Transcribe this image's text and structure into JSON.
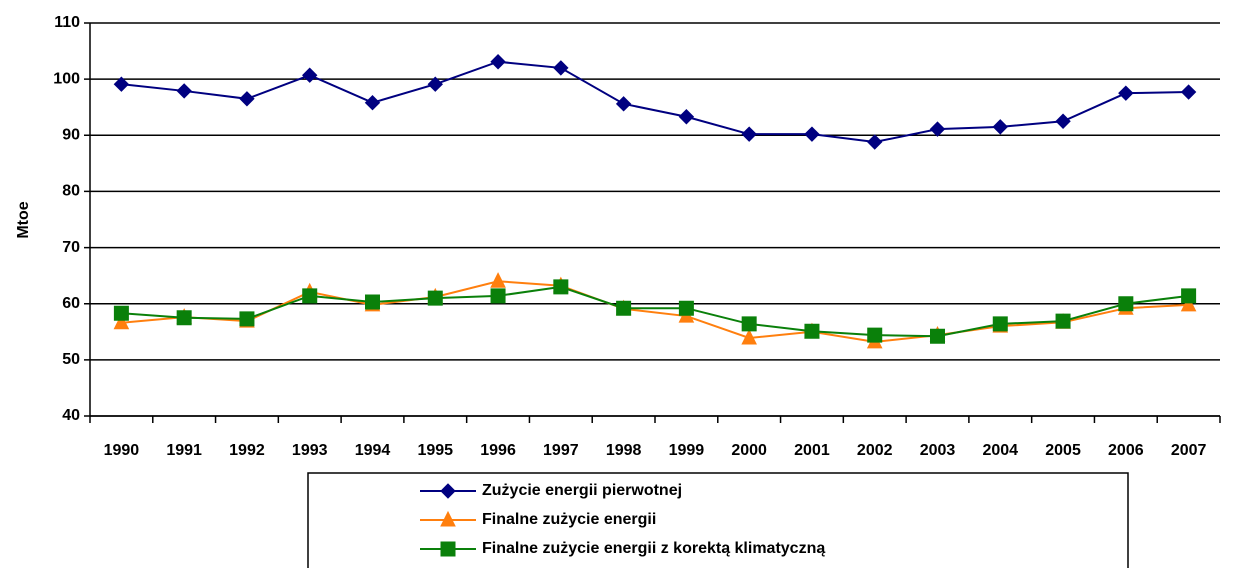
{
  "chart_data": {
    "type": "line",
    "y_label": "Mtoe",
    "categories": [
      "1990",
      "1991",
      "1992",
      "1993",
      "1994",
      "1995",
      "1996",
      "1997",
      "1998",
      "1999",
      "2000",
      "2001",
      "2002",
      "2003",
      "2004",
      "2005",
      "2006",
      "2007"
    ],
    "series": [
      {
        "name": "Zużycie energii pierwotnej",
        "color": "#000080",
        "marker": "diamond",
        "values": [
          99.1,
          97.9,
          96.5,
          100.7,
          95.8,
          99.1,
          103.1,
          102.0,
          95.6,
          93.3,
          90.2,
          90.2,
          88.8,
          91.1,
          91.5,
          92.5,
          97.5,
          97.7
        ]
      },
      {
        "name": "Finalne zużycie energii",
        "color": "#ff7f0e",
        "marker": "triangle",
        "values": [
          56.6,
          57.6,
          56.9,
          62.1,
          59.8,
          61.2,
          64.0,
          63.2,
          59.1,
          57.8,
          53.9,
          55.0,
          53.2,
          54.4,
          56.0,
          56.7,
          59.2,
          59.8
        ]
      },
      {
        "name": "Finalne zużycie energii z korektą klimatyczną",
        "color": "#0a800a",
        "marker": "square",
        "values": [
          58.3,
          57.5,
          57.3,
          61.4,
          60.3,
          61.0,
          61.4,
          63.0,
          59.2,
          59.2,
          56.4,
          55.1,
          54.4,
          54.2,
          56.4,
          56.9,
          60.0,
          61.4
        ]
      }
    ],
    "ylim": [
      40,
      110
    ],
    "yticks": [
      40,
      50,
      60,
      70,
      80,
      90,
      100,
      110
    ],
    "grid": true
  }
}
